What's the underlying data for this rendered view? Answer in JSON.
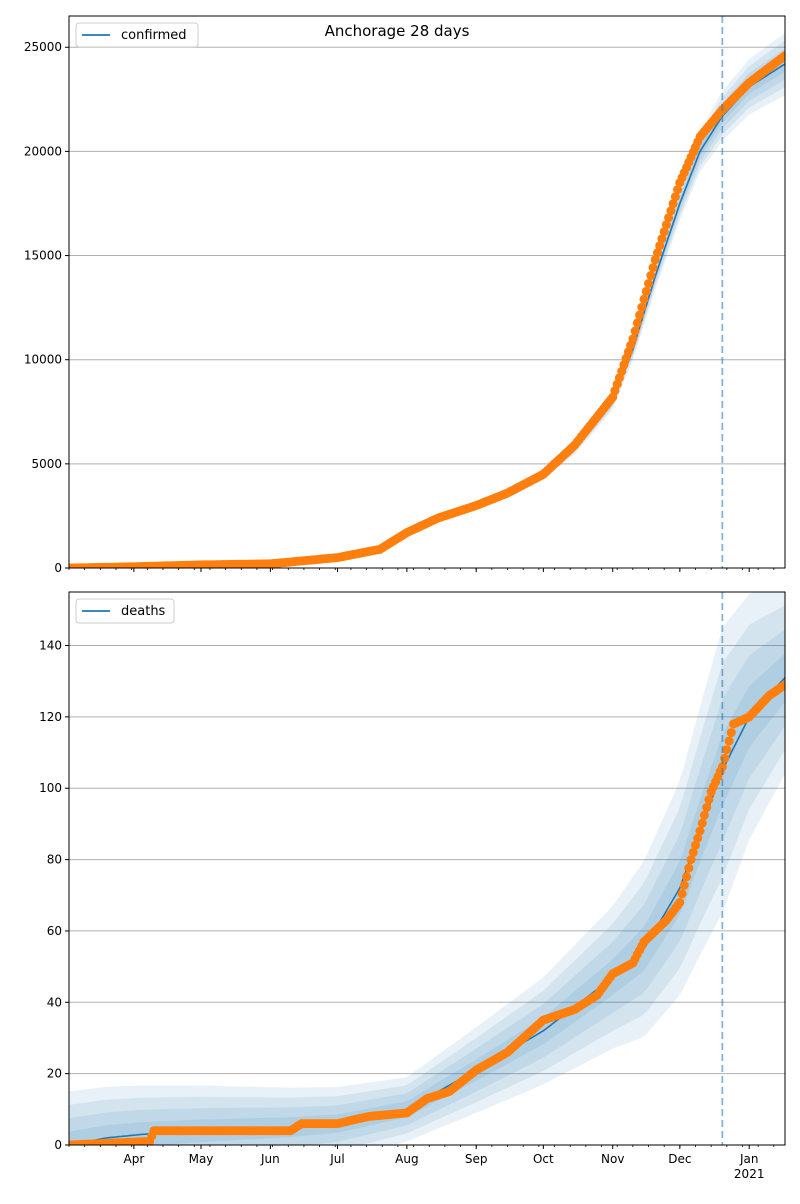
{
  "figure": {
    "title": "Anchorage 28 days"
  },
  "chart_data": [
    {
      "type": "line",
      "legend": {
        "label": "confirmed",
        "placement": "upper-left"
      },
      "grid": "y-major",
      "x_range": [
        "2020-03-03",
        "2021-01-17"
      ],
      "ylim": [
        0,
        26500
      ],
      "yticks": [
        0,
        5000,
        10000,
        15000,
        20000,
        25000
      ],
      "forecast_start": "2020-12-20",
      "model_points": [
        [
          "2020-03-03",
          0
        ],
        [
          "2020-04-01",
          60
        ],
        [
          "2020-05-01",
          150
        ],
        [
          "2020-06-01",
          200
        ],
        [
          "2020-07-01",
          500
        ],
        [
          "2020-07-20",
          900
        ],
        [
          "2020-08-01",
          1700
        ],
        [
          "2020-08-15",
          2400
        ],
        [
          "2020-09-01",
          3000
        ],
        [
          "2020-09-15",
          3600
        ],
        [
          "2020-10-01",
          4500
        ],
        [
          "2020-10-15",
          5800
        ],
        [
          "2020-11-01",
          8000
        ],
        [
          "2020-11-10",
          10500
        ],
        [
          "2020-11-20",
          14000
        ],
        [
          "2020-12-01",
          17500
        ],
        [
          "2020-12-10",
          20000
        ],
        [
          "2020-12-20",
          21700
        ],
        [
          "2021-01-01",
          23100
        ],
        [
          "2021-01-17",
          24200
        ]
      ],
      "observed_points": [
        [
          "2020-03-03",
          0
        ],
        [
          "2020-04-01",
          60
        ],
        [
          "2020-05-01",
          150
        ],
        [
          "2020-06-01",
          200
        ],
        [
          "2020-07-01",
          500
        ],
        [
          "2020-07-20",
          900
        ],
        [
          "2020-08-01",
          1700
        ],
        [
          "2020-08-15",
          2400
        ],
        [
          "2020-09-01",
          3000
        ],
        [
          "2020-09-15",
          3600
        ],
        [
          "2020-10-01",
          4500
        ],
        [
          "2020-10-15",
          5900
        ],
        [
          "2020-11-01",
          8200
        ],
        [
          "2020-11-10",
          11000
        ],
        [
          "2020-11-20",
          14800
        ],
        [
          "2020-12-01",
          18500
        ],
        [
          "2020-12-10",
          20700
        ],
        [
          "2020-12-20",
          22000
        ],
        [
          "2021-01-01",
          23300
        ],
        [
          "2021-01-17",
          24600
        ]
      ],
      "band_half_widths": [
        [
          "2020-03-03",
          0
        ],
        [
          "2020-07-01",
          50
        ],
        [
          "2020-09-01",
          200
        ],
        [
          "2020-10-01",
          300
        ],
        [
          "2020-11-01",
          400
        ],
        [
          "2020-12-01",
          800
        ],
        [
          "2020-12-20",
          1200
        ],
        [
          "2021-01-17",
          1500
        ]
      ],
      "x_ticks": [
        {
          "date": "2020-04-01",
          "label": "Apr"
        },
        {
          "date": "2020-05-01",
          "label": "May"
        },
        {
          "date": "2020-06-01",
          "label": "Jun"
        },
        {
          "date": "2020-07-01",
          "label": "Jul"
        },
        {
          "date": "2020-08-01",
          "label": "Aug"
        },
        {
          "date": "2020-09-01",
          "label": "Sep"
        },
        {
          "date": "2020-10-01",
          "label": "Oct"
        },
        {
          "date": "2020-11-01",
          "label": "Nov"
        },
        {
          "date": "2020-12-01",
          "label": "Dec"
        },
        {
          "date": "2021-01-01",
          "label": "Jan",
          "sub": "2021"
        }
      ]
    },
    {
      "type": "line",
      "legend": {
        "label": "deaths",
        "placement": "upper-left"
      },
      "grid": "y-major",
      "x_range": [
        "2020-03-03",
        "2021-01-17"
      ],
      "ylim": [
        0,
        155
      ],
      "yticks": [
        0,
        20,
        40,
        60,
        80,
        100,
        120,
        140
      ],
      "forecast_start": "2020-12-20",
      "model_points": [
        [
          "2020-03-03",
          0
        ],
        [
          "2020-03-20",
          2
        ],
        [
          "2020-04-05",
          3
        ],
        [
          "2020-05-01",
          4
        ],
        [
          "2020-06-10",
          5
        ],
        [
          "2020-07-01",
          6
        ],
        [
          "2020-08-01",
          10
        ],
        [
          "2020-09-01",
          21
        ],
        [
          "2020-10-01",
          32
        ],
        [
          "2020-11-01",
          47
        ],
        [
          "2020-11-15",
          55
        ],
        [
          "2020-12-01",
          72
        ],
        [
          "2020-12-10",
          88
        ],
        [
          "2020-12-20",
          105
        ],
        [
          "2021-01-01",
          120
        ],
        [
          "2021-01-17",
          131
        ]
      ],
      "observed_points": [
        [
          "2020-03-03",
          0
        ],
        [
          "2020-04-08",
          1
        ],
        [
          "2020-04-10",
          4
        ],
        [
          "2020-06-10",
          4
        ],
        [
          "2020-06-15",
          6
        ],
        [
          "2020-07-01",
          6
        ],
        [
          "2020-07-15",
          8
        ],
        [
          "2020-08-01",
          9
        ],
        [
          "2020-08-10",
          13
        ],
        [
          "2020-08-20",
          15
        ],
        [
          "2020-09-01",
          21
        ],
        [
          "2020-09-15",
          26
        ],
        [
          "2020-10-01",
          35
        ],
        [
          "2020-10-15",
          38
        ],
        [
          "2020-10-25",
          42
        ],
        [
          "2020-11-01",
          48
        ],
        [
          "2020-11-10",
          51
        ],
        [
          "2020-11-15",
          57
        ],
        [
          "2020-11-25",
          63
        ],
        [
          "2020-12-01",
          68
        ],
        [
          "2020-12-06",
          80
        ],
        [
          "2020-12-10",
          88
        ],
        [
          "2020-12-15",
          99
        ],
        [
          "2020-12-20",
          106
        ],
        [
          "2020-12-25",
          118
        ],
        [
          "2021-01-01",
          120
        ],
        [
          "2021-01-10",
          126
        ],
        [
          "2021-01-17",
          129
        ]
      ],
      "band_half_widths": [
        [
          "2020-03-03",
          15
        ],
        [
          "2020-08-01",
          9
        ],
        [
          "2020-09-01",
          12
        ],
        [
          "2020-10-01",
          15
        ],
        [
          "2020-11-01",
          20
        ],
        [
          "2020-12-01",
          30
        ],
        [
          "2020-12-20",
          40
        ],
        [
          "2021-01-17",
          27
        ]
      ],
      "x_ticks": [
        {
          "date": "2020-04-01",
          "label": "Apr"
        },
        {
          "date": "2020-05-01",
          "label": "May"
        },
        {
          "date": "2020-06-01",
          "label": "Jun"
        },
        {
          "date": "2020-07-01",
          "label": "Jul"
        },
        {
          "date": "2020-08-01",
          "label": "Aug"
        },
        {
          "date": "2020-09-01",
          "label": "Sep"
        },
        {
          "date": "2020-10-01",
          "label": "Oct"
        },
        {
          "date": "2020-11-01",
          "label": "Nov"
        },
        {
          "date": "2020-12-01",
          "label": "Dec"
        },
        {
          "date": "2021-01-01",
          "label": "Jan",
          "sub": "2021"
        }
      ]
    }
  ],
  "colors": {
    "model": "#1f77b4",
    "observed": "#ff7f0e",
    "band": "#1f77b4",
    "grid": "#b0b0b0",
    "forecast_line": "#1f77b4"
  }
}
